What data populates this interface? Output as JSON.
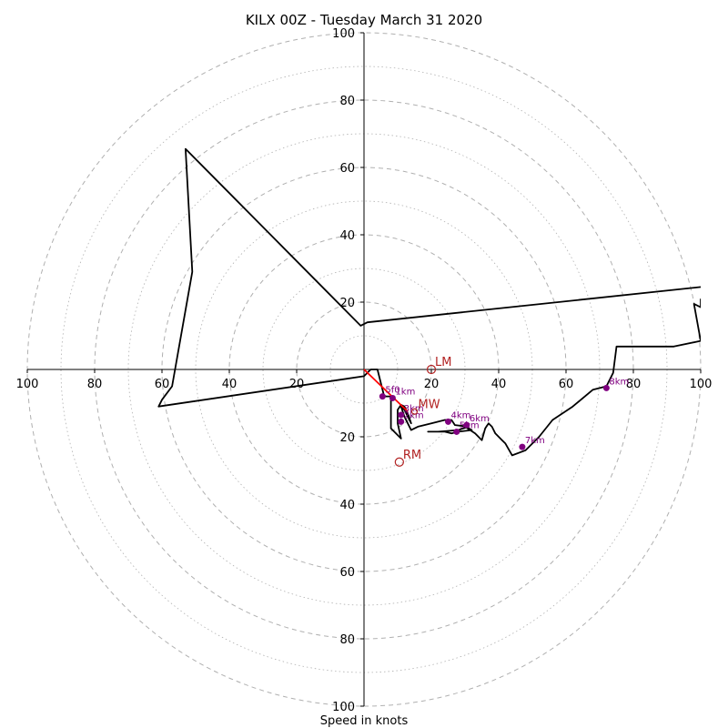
{
  "chart_data": {
    "type": "hodograph",
    "title": "KILX 00Z - Tuesday March 31 2020",
    "xlabel": "Speed in knots",
    "range": [
      -100,
      100
    ],
    "ring_step": 20,
    "ticks_x": [
      "100",
      "80",
      "60",
      "40",
      "20",
      "20",
      "40",
      "60",
      "80",
      "100"
    ],
    "ticks_y_top": [
      "100",
      "80",
      "60",
      "40",
      "20"
    ],
    "ticks_y_bottom": [
      "20",
      "40",
      "60",
      "80",
      "100"
    ],
    "colors": {
      "trace": "#000000",
      "height_markers": "#800080",
      "storm_motion": "#b22222",
      "shear_vector": "#ff0000",
      "rings": "#b0b0b0"
    },
    "trace": [
      [
        100,
        21
      ],
      [
        100,
        18.5
      ],
      [
        98,
        19.5
      ],
      [
        100,
        8.5
      ],
      [
        92,
        6.8
      ],
      [
        75,
        6.8
      ],
      [
        74,
        -1
      ],
      [
        72,
        -5
      ],
      [
        68,
        -6
      ],
      [
        62,
        -11
      ],
      [
        56,
        -15
      ],
      [
        52,
        -20
      ],
      [
        48,
        -24
      ],
      [
        44,
        -25.5
      ],
      [
        42,
        -22
      ],
      [
        41,
        -21
      ],
      [
        39,
        -19
      ],
      [
        38,
        -17
      ],
      [
        37,
        -16
      ],
      [
        36,
        -17.5
      ],
      [
        35,
        -21
      ],
      [
        33,
        -19
      ],
      [
        30,
        -17
      ],
      [
        32,
        -18
      ],
      [
        28,
        -18.5
      ],
      [
        26,
        -19
      ],
      [
        24,
        -18.5
      ],
      [
        19,
        -18.5
      ],
      [
        22,
        -18.5
      ],
      [
        28,
        -18
      ],
      [
        31,
        -17
      ],
      [
        27,
        -16.5
      ],
      [
        26,
        -15
      ],
      [
        24,
        -15
      ],
      [
        20,
        -16
      ],
      [
        16,
        -17
      ],
      [
        14,
        -18
      ],
      [
        12,
        -14
      ],
      [
        11,
        -11
      ],
      [
        12,
        -12
      ],
      [
        13,
        -14
      ],
      [
        14,
        -16
      ],
      [
        13,
        -13
      ],
      [
        12,
        -11
      ],
      [
        11,
        -10.5
      ],
      [
        10,
        -12
      ],
      [
        10,
        -16
      ],
      [
        11,
        -20.5
      ],
      [
        8,
        -17.5
      ],
      [
        8,
        -8.5
      ],
      [
        9,
        -8
      ],
      [
        6,
        -8
      ],
      [
        4,
        0
      ],
      [
        2,
        0
      ],
      [
        0,
        -2
      ],
      [
        -61,
        -11
      ],
      [
        -60,
        -9
      ],
      [
        -57,
        -5
      ],
      [
        -51,
        29
      ],
      [
        -53,
        65.5
      ],
      [
        -1,
        13
      ],
      [
        1,
        14
      ],
      [
        100,
        24.5
      ]
    ],
    "height_markers": [
      {
        "label": "5f0",
        "u": 5.5,
        "v": -8
      },
      {
        "label": "1km",
        "u": 8.5,
        "v": -8.5
      },
      {
        "label": "3km",
        "u": 11,
        "v": -13.5
      },
      {
        "label": "2km",
        "u": 11,
        "v": -15.5
      },
      {
        "label": "4km",
        "u": 25,
        "v": -15.5
      },
      {
        "label": "6km",
        "u": 30.5,
        "v": -16.5
      },
      {
        "label": "5km",
        "u": 27.5,
        "v": -18.5
      },
      {
        "label": "7km",
        "u": 47,
        "v": -23
      },
      {
        "label": "8km",
        "u": 72,
        "v": -5.5
      }
    ],
    "storm_motion": [
      {
        "label": "LM",
        "u": 20,
        "v": 0
      },
      {
        "label": "RM",
        "u": 10.5,
        "v": -27.5
      },
      {
        "label": "MW",
        "u": 15,
        "v": -12.5
      }
    ],
    "shear_vector": {
      "u0": 0,
      "v0": 0,
      "u1": 13,
      "v1": -12.5
    }
  }
}
